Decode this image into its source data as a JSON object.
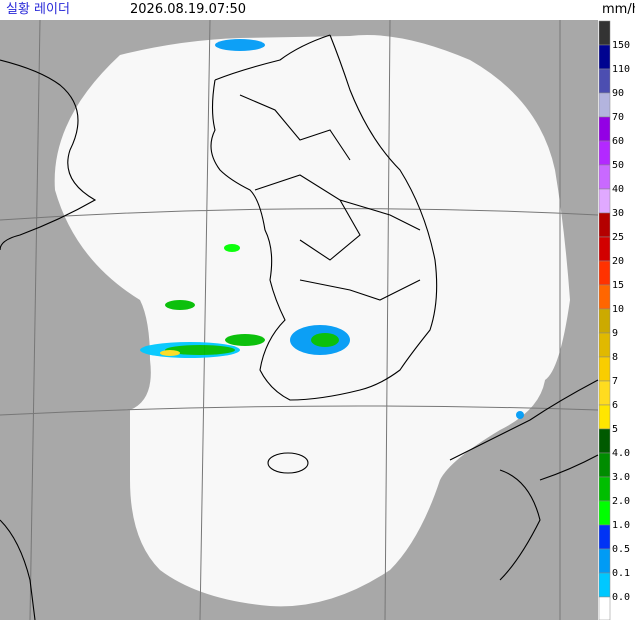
{
  "header": {
    "title": "실황 레이더",
    "timestamp": "2026.08.19.07:50",
    "unit": "mm/h"
  },
  "legend": {
    "labels": [
      "150",
      "110",
      "90",
      "70",
      "60",
      "50",
      "40",
      "30",
      "25",
      "20",
      "15",
      "10",
      "9",
      "8",
      "7",
      "6",
      "5",
      "4.0",
      "3.0",
      "2.0",
      "1.0",
      "0.5",
      "0.1",
      "0.0"
    ],
    "colors": [
      "#333333",
      "#000390",
      "#4c4eb1",
      "#b3b4de",
      "#9300e4",
      "#b329ff",
      "#c969ff",
      "#e0a9ff",
      "#b40000",
      "#d20000",
      "#ff3200",
      "#ff6600",
      "#ccaa00",
      "#e0b900",
      "#f9cd00",
      "#ffdc1f",
      "#ffe600",
      "#005a00",
      "#008c00",
      "#00be00",
      "#00ff00",
      "#0033f5",
      "#009bf5",
      "#00c8ff",
      "#ffffff"
    ]
  }
}
